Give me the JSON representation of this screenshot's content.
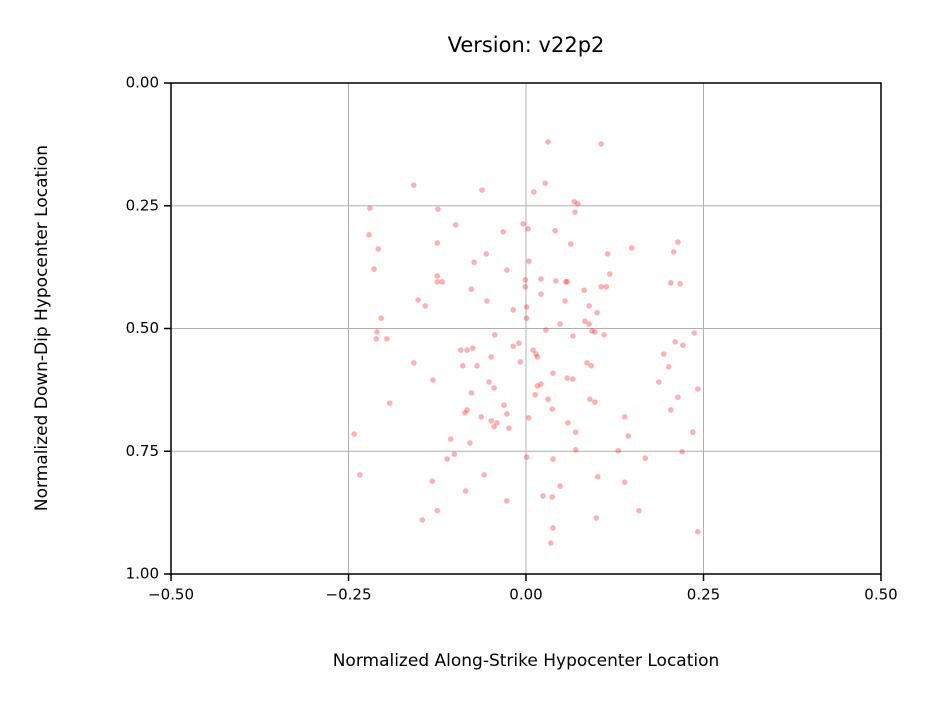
{
  "chart_data": {
    "type": "scatter",
    "title": "Version: v22p2",
    "x_label": "Normalized Along-Strike Hypocenter Location",
    "y_label": "Normalized Down-Dip Hypocenter Location",
    "color": "#ff0000",
    "grid": true,
    "xlim": [
      -0.5,
      0.5
    ],
    "ylim": [
      1.0,
      0.0
    ],
    "xticks": [
      {
        "value": -0.5,
        "label": "−0.50"
      },
      {
        "value": -0.25,
        "label": "−0.25"
      },
      {
        "value": 0,
        "label": "0.00"
      },
      0.25,
      {
        "value": 0.5,
        "label": "0.50"
      }
    ],
    "yticks": [
      {
        "value": 0,
        "label": "0.00"
      },
      0.25,
      {
        "value": 0.5,
        "label": "0.50"
      },
      0.75,
      {
        "value": 1,
        "label": "1.00"
      }
    ],
    "x": [
      0.031,
      0.106,
      0.027,
      -0.158,
      0.011,
      -0.062,
      0.068,
      0.073,
      -0.22,
      -0.124,
      0.069,
      -0.099,
      -0.004,
      0.003,
      0.041,
      -0.221,
      -0.032,
      0.214,
      0.063,
      -0.125,
      0.149,
      -0.208,
      0.208,
      -0.056,
      0.115,
      0.004,
      -0.073,
      -0.214,
      -0.027,
      0.118,
      -0.125,
      -0.118,
      -0.125,
      -0.001,
      0.021,
      0.042,
      0.058,
      0.056,
      0.204,
      0.217,
      0.106,
      0.113,
      -0.001,
      -0.077,
      0.082,
      0.021,
      -0.152,
      -0.055,
      0.055,
      -0.142,
      0.089,
      0.001,
      -0.018,
      0.1,
      -0.204,
      0.001,
      0.083,
      0.089,
      0.048,
      0.028,
      -0.21,
      0.093,
      0.097,
      0.11,
      -0.044,
      0.237,
      0.066,
      -0.196,
      -0.211,
      0.21,
      0.221,
      -0.01,
      -0.018,
      -0.092,
      -0.083,
      -0.075,
      0.01,
      0.014,
      -0.049,
      0.016,
      0.194,
      -0.158,
      -0.008,
      0.086,
      -0.089,
      -0.069,
      0.092,
      0.201,
      0.038,
      0.058,
      0.066,
      -0.131,
      -0.052,
      0.187,
      0.021,
      0.016,
      -0.045,
      0.242,
      -0.077,
      0.013,
      0.214,
      0.031,
      0.09,
      0.097,
      -0.192,
      -0.031,
      0.037,
      -0.083,
      0.204,
      -0.086,
      -0.027,
      0.139,
      -0.063,
      0.004,
      -0.049,
      0.059,
      -0.041,
      -0.045,
      -0.024,
      -0.242,
      0.235,
      0.07,
      0.144,
      -0.106,
      -0.079,
      0.07,
      0.13,
      0.22,
      -0.101,
      0.001,
      0.038,
      -0.111,
      0.168,
      -0.059,
      -0.234,
      0.101,
      -0.132,
      0.139,
      0.048,
      -0.085,
      0.024,
      0.037,
      -0.027,
      -0.125,
      0.159,
      -0.146,
      0.099,
      0.038,
      0.242,
      0.035
    ],
    "values": [
      0.12,
      0.124,
      0.204,
      0.208,
      0.222,
      0.218,
      0.242,
      0.246,
      0.255,
      0.257,
      0.263,
      0.289,
      0.287,
      0.297,
      0.301,
      0.309,
      0.303,
      0.324,
      0.328,
      0.326,
      0.336,
      0.338,
      0.344,
      0.348,
      0.348,
      0.363,
      0.365,
      0.379,
      0.381,
      0.389,
      0.393,
      0.405,
      0.405,
      0.401,
      0.399,
      0.403,
      0.405,
      0.405,
      0.407,
      0.409,
      0.415,
      0.415,
      0.415,
      0.42,
      0.422,
      0.43,
      0.442,
      0.444,
      0.444,
      0.454,
      0.454,
      0.456,
      0.462,
      0.468,
      0.479,
      0.479,
      0.485,
      0.491,
      0.491,
      0.503,
      0.507,
      0.505,
      0.507,
      0.513,
      0.513,
      0.509,
      0.515,
      0.521,
      0.521,
      0.527,
      0.534,
      0.53,
      0.536,
      0.544,
      0.544,
      0.54,
      0.544,
      0.552,
      0.558,
      0.558,
      0.552,
      0.57,
      0.568,
      0.57,
      0.576,
      0.576,
      0.576,
      0.578,
      0.591,
      0.601,
      0.603,
      0.605,
      0.609,
      0.609,
      0.613,
      0.617,
      0.621,
      0.623,
      0.631,
      0.635,
      0.64,
      0.644,
      0.644,
      0.65,
      0.652,
      0.656,
      0.664,
      0.666,
      0.666,
      0.672,
      0.674,
      0.68,
      0.68,
      0.682,
      0.688,
      0.692,
      0.692,
      0.7,
      0.703,
      0.715,
      0.711,
      0.711,
      0.719,
      0.725,
      0.733,
      0.747,
      0.749,
      0.751,
      0.756,
      0.762,
      0.766,
      0.766,
      0.764,
      0.798,
      0.798,
      0.802,
      0.811,
      0.813,
      0.821,
      0.831,
      0.841,
      0.843,
      0.851,
      0.871,
      0.871,
      0.89,
      0.886,
      0.906,
      0.914,
      0.937
    ]
  }
}
